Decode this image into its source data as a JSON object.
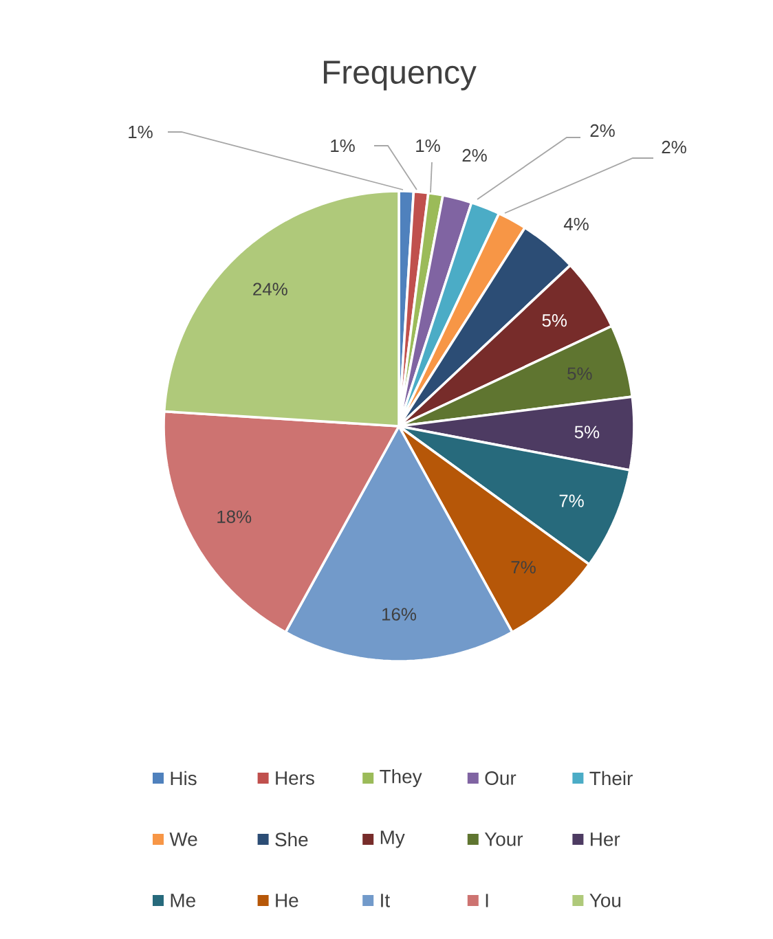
{
  "chart_data": {
    "type": "pie",
    "title": "Frequency",
    "categories": [
      "His",
      "Hers",
      "They",
      "Our",
      "Their",
      "We",
      "She",
      "My",
      "Your",
      "Her",
      "Me",
      "He",
      "It",
      "I",
      "You"
    ],
    "values": [
      1,
      1,
      1,
      2,
      2,
      2,
      4,
      5,
      5,
      5,
      7,
      7,
      16,
      18,
      24
    ],
    "value_labels": [
      "1%",
      "1%",
      "1%",
      "2%",
      "2%",
      "2%",
      "4%",
      "5%",
      "5%",
      "5%",
      "7%",
      "7%",
      "16%",
      "18%",
      "24%"
    ],
    "colors": [
      "#4f81bd",
      "#c0504d",
      "#9bbb59",
      "#8064a2",
      "#4bacc6",
      "#f79646",
      "#2c4d75",
      "#772c2a",
      "#5f7530",
      "#4d3b62",
      "#276a7c",
      "#b65708",
      "#729aca",
      "#cd7371",
      "#afc97a"
    ],
    "legend": "bottom"
  }
}
